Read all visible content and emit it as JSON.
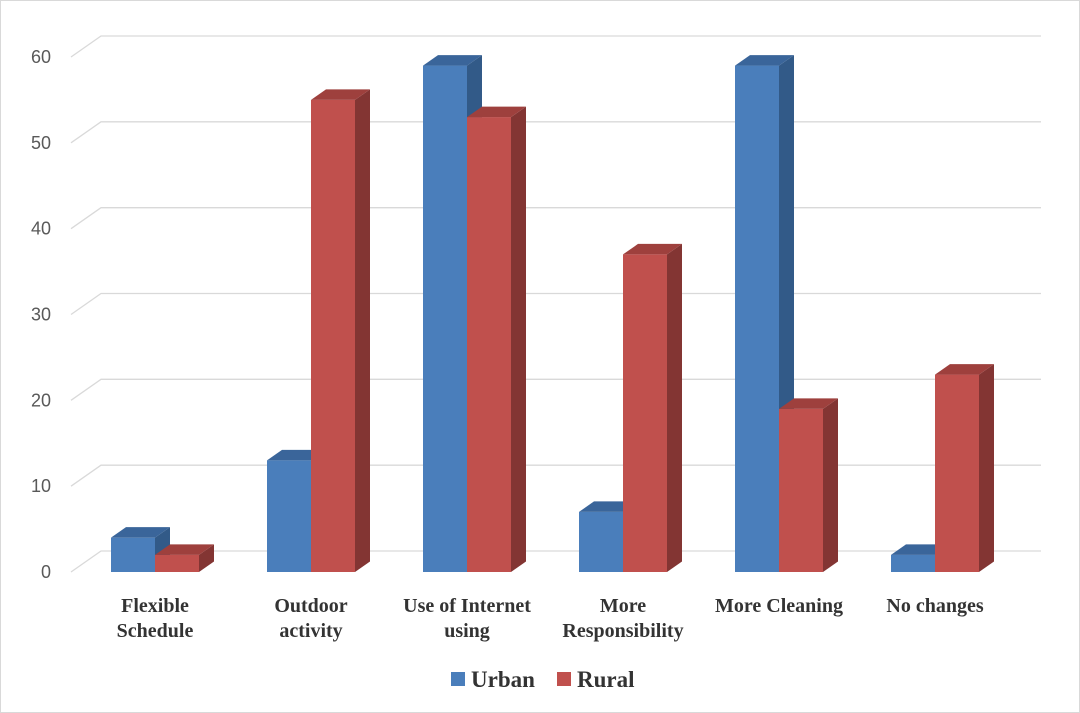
{
  "chart_data": {
    "type": "bar",
    "style": "3d-clustered-column",
    "categories": [
      [
        "Flexible",
        "Schedule"
      ],
      [
        "Outdoor",
        "activity"
      ],
      [
        "Use of Internet",
        "using"
      ],
      [
        "More",
        "Responsibility"
      ],
      [
        "More Cleaning"
      ],
      [
        "No changes"
      ]
    ],
    "series": [
      {
        "name": "Urban",
        "color": "#4a7ebb",
        "side_color": "#325a88",
        "top_color": "#3a659a",
        "values": [
          4,
          13,
          59,
          7,
          59,
          2
        ]
      },
      {
        "name": "Rural",
        "color": "#c0504d",
        "side_color": "#833533",
        "top_color": "#9e403d",
        "values": [
          2,
          55,
          53,
          37,
          19,
          23
        ]
      }
    ],
    "yticks": [
      0,
      10,
      20,
      30,
      40,
      50,
      60
    ],
    "ylim": [
      0,
      60
    ],
    "grid": true,
    "legend_position": "bottom",
    "title": "",
    "xlabel": "",
    "ylabel": ""
  }
}
